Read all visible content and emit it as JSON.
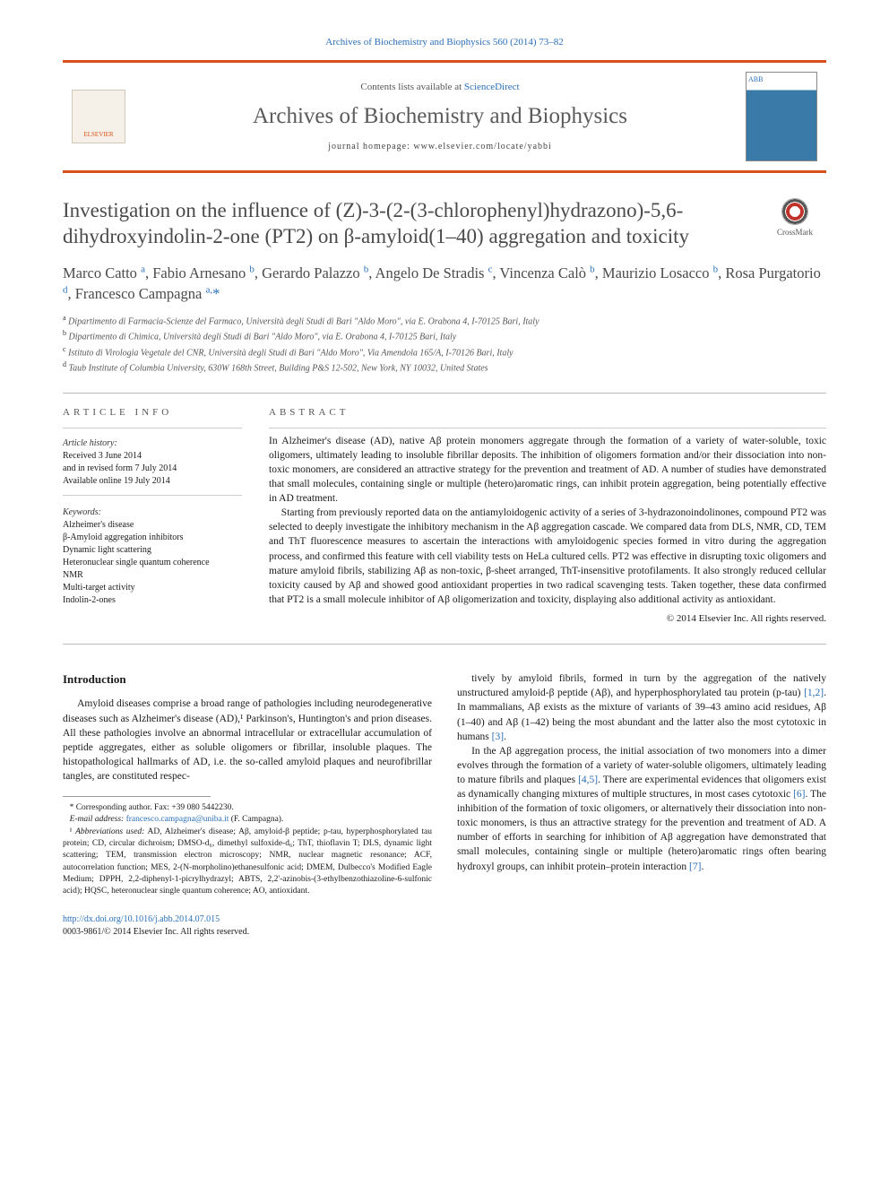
{
  "top_link": "Archives of Biochemistry and Biophysics 560 (2014) 73–82",
  "masthead": {
    "sd_line_prefix": "Contents lists available at ",
    "sd_link": "ScienceDirect",
    "journal": "Archives of Biochemistry and Biophysics",
    "homepage": "journal homepage: www.elsevier.com/locate/yabbi",
    "publisher_logo": "ELSEVIER",
    "cover_label": "ABB"
  },
  "crossmark_label": "CrossMark",
  "title": "Investigation on the influence of (Z)-3-(2-(3-chlorophenyl)hydrazono)-5,6-dihydroxyindolin-2-one (PT2) on β-amyloid(1–40) aggregation and toxicity",
  "authors_html": "Marco Catto <span class='sup'>a</span>, Fabio Arnesano <span class='sup'>b</span>, Gerardo Palazzo <span class='sup'>b</span>, Angelo De Stradis <span class='sup'>c</span>, Vincenza Calò <span class='sup'>b</span>, Maurizio Losacco <span class='sup'>b</span>, Rosa Purgatorio <span class='sup'>d</span>, Francesco Campagna <span class='sup'>a,</span><span class='star'>*</span>",
  "affiliations": [
    {
      "sup": "a",
      "text": "Dipartimento di Farmacia-Scienze del Farmaco, Università degli Studi di Bari \"Aldo Moro\", via E. Orabona 4, I-70125 Bari, Italy"
    },
    {
      "sup": "b",
      "text": "Dipartimento di Chimica, Università degli Studi di Bari \"Aldo Moro\", via E. Orabona 4, I-70125 Bari, Italy"
    },
    {
      "sup": "c",
      "text": "Istituto di Virologia Vegetale del CNR, Università degli Studi di Bari \"Aldo Moro\", Via Amendola 165/A, I-70126 Bari, Italy"
    },
    {
      "sup": "d",
      "text": "Taub Institute of Columbia University, 630W 168th Street, Building P&S 12-502, New York, NY 10032, United States"
    }
  ],
  "article_info": {
    "head": "article info",
    "history_label": "Article history:",
    "history": [
      "Received 3 June 2014",
      "and in revised form 7 July 2014",
      "Available online 19 July 2014"
    ],
    "keywords_label": "Keywords:",
    "keywords": [
      "Alzheimer's disease",
      "β-Amyloid aggregation inhibitors",
      "Dynamic light scattering",
      "Heteronuclear single quantum coherence",
      "NMR",
      "Multi-target activity",
      "Indolin-2-ones"
    ]
  },
  "abstract": {
    "head": "abstract",
    "paragraphs": [
      "In Alzheimer's disease (AD), native Aβ protein monomers aggregate through the formation of a variety of water-soluble, toxic oligomers, ultimately leading to insoluble fibrillar deposits. The inhibition of oligomers formation and/or their dissociation into non-toxic monomers, are considered an attractive strategy for the prevention and treatment of AD. A number of studies have demonstrated that small molecules, containing single or multiple (hetero)aromatic rings, can inhibit protein aggregation, being potentially effective in AD treatment.",
      "Starting from previously reported data on the antiamyloidogenic activity of a series of 3-hydrazonoindolinones, compound PT2 was selected to deeply investigate the inhibitory mechanism in the Aβ aggregation cascade. We compared data from DLS, NMR, CD, TEM and ThT fluorescence measures to ascertain the interactions with amyloidogenic species formed in vitro during the aggregation process, and confirmed this feature with cell viability tests on HeLa cultured cells. PT2 was effective in disrupting toxic oligomers and mature amyloid fibrils, stabilizing Aβ as non-toxic, β-sheet arranged, ThT-insensitive protofilaments. It also strongly reduced cellular toxicity caused by Aβ and showed good antioxidant properties in two radical scavenging tests. Taken together, these data confirmed that PT2 is a small molecule inhibitor of Aβ oligomerization and toxicity, displaying also additional activity as antioxidant."
    ],
    "copyright": "© 2014 Elsevier Inc. All rights reserved."
  },
  "intro": {
    "heading": "Introduction",
    "col1_p1": "Amyloid diseases comprise a broad range of pathologies including neurodegenerative diseases such as Alzheimer's disease (AD),¹ Parkinson's, Huntington's and prion diseases. All these pathologies involve an abnormal intracellular or extracellular accumulation of peptide aggregates, either as soluble oligomers or fibrillar, insoluble plaques. The histopathological hallmarks of AD, i.e. the so-called amyloid plaques and neurofibrillar tangles, are constituted respec-",
    "col2_p1_html": "tively by amyloid fibrils, formed in turn by the aggregation of the natively unstructured amyloid-β peptide (Aβ), and hyperphosphorylated tau protein (p-tau) <span class='cite'>[1,2]</span>. In mammalians, Aβ exists as the mixture of variants of 39–43 amino acid residues, Aβ (1–40) and Aβ (1–42) being the most abundant and the latter also the most cytotoxic in humans <span class='cite'>[3]</span>.",
    "col2_p2_html": "In the Aβ aggregation process, the initial association of two monomers into a dimer evolves through the formation of a variety of water-soluble oligomers, ultimately leading to mature fibrils and plaques <span class='cite'>[4,5]</span>. There are experimental evidences that oligomers exist as dynamically changing mixtures of multiple structures, in most cases cytotoxic <span class='cite'>[6]</span>. The inhibition of the formation of toxic oligomers, or alternatively their dissociation into non-toxic monomers, is thus an attractive strategy for the prevention and treatment of AD. A number of efforts in searching for inhibition of Aβ aggregation have demonstrated that small molecules, containing single or multiple (hetero)aromatic rings often bearing hydroxyl groups, can inhibit protein–protein interaction <span class='cite'>[7]</span>."
  },
  "footnotes": {
    "corr": "* Corresponding author. Fax: +39 080 5442230.",
    "email_label": "E-mail address: ",
    "email": "francesco.campagna@uniba.it",
    "email_who": " (F. Campagna).",
    "abbrev_html": "¹ <em>Abbreviations used:</em> AD, Alzheimer's disease; Aβ, amyloid-β peptide; p-tau, hyperphosphorylated tau protein; CD, circular dichroism; DMSO-d₆, dimethyl sulfoxide-d₆; ThT, thioflavin T; DLS, dynamic light scattering; TEM, transmission electron microscopy; NMR, nuclear magnetic resonance; ACF, autocorrelation function; MES, 2-(N-morpholino)ethanesulfonic acid; DMEM, Dulbecco's Modified Eagle Medium; DPPH, 2,2-diphenyl-1-picrylhydrazyl; ABTS, 2,2'-azinobis-(3-ethylbenzothiazoline-6-sulfonic acid); HQSC, heteronuclear single quantum coherence; AO, antioxidant."
  },
  "doi": {
    "link": "http://dx.doi.org/10.1016/j.abb.2014.07.015",
    "line2": "0003-9861/© 2014 Elsevier Inc. All rights reserved."
  },
  "colors": {
    "accent": "#d94f1a",
    "link": "#2a6fb8",
    "body": "#1a1a1a",
    "muted": "#5a5a5a"
  }
}
